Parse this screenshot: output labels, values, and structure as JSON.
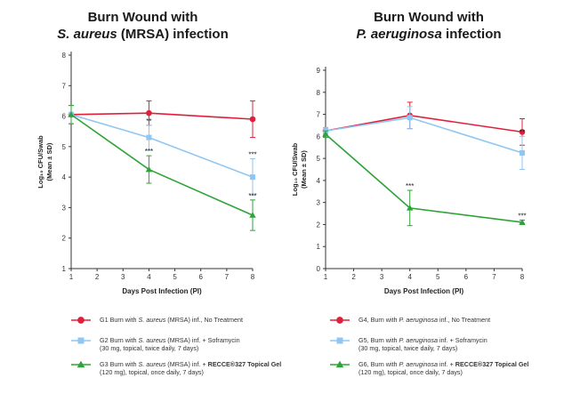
{
  "chart_data": [
    {
      "type": "line",
      "title_line1": "Burn Wound with",
      "title_line2_italic": "S. aureus",
      "title_line2_rest": " (MRSA) infection",
      "xlabel": "Days Post Infection (PI)",
      "ylabel_line1": "Log₁₀ CFU/Swab",
      "ylabel_line2": "(Mean ± SD)",
      "xlim": [
        1,
        8
      ],
      "ylim": [
        1,
        8
      ],
      "x_ticks": [
        1,
        2,
        3,
        4,
        5,
        6,
        7,
        8
      ],
      "y_ticks": [
        1,
        2,
        3,
        4,
        5,
        6,
        7,
        8
      ],
      "x": [
        1,
        4,
        8
      ],
      "series": [
        {
          "legend_prefix": "G1 Burn with ",
          "legend_italic": "S. aureus",
          "legend_suffix": " (MRSA) inf., No Treatment",
          "legend_line2": "",
          "color": "#e0203a",
          "marker": "circle",
          "values": [
            6.05,
            6.1,
            5.9
          ],
          "errors": [
            0.3,
            0.4,
            0.6
          ],
          "sig": [
            "",
            "",
            ""
          ]
        },
        {
          "legend_prefix": "G2 Burn with ",
          "legend_italic": "S. aureus",
          "legend_suffix": " (MRSA) inf. + Soframycin",
          "legend_line2": "(30 mg, topical, twice daily, 7 days)",
          "color": "#8fc6f2",
          "marker": "square",
          "values": [
            6.05,
            5.3,
            4.0
          ],
          "errors": [
            0.3,
            0.4,
            0.6
          ],
          "sig": [
            "",
            "**",
            "***"
          ]
        },
        {
          "legend_prefix": "G3 Burn with ",
          "legend_italic": "S. aureus",
          "legend_suffix": " (MRSA) inf. + ",
          "legend_bold": "RECCE®327 Topical Gel",
          "legend_line2": "(120 mg), topical, once daily, 7 days)",
          "color": "#2fa33a",
          "marker": "triangle",
          "values": [
            6.05,
            4.25,
            2.75
          ],
          "errors": [
            0.3,
            0.45,
            0.5
          ],
          "sig": [
            "",
            "***",
            "***"
          ]
        }
      ]
    },
    {
      "type": "line",
      "title_line1": "Burn Wound with",
      "title_line2_italic": "P. aeruginosa",
      "title_line2_rest": " infection",
      "xlabel": "Days Post Infection (PI)",
      "ylabel_line1": "Log₁₀ CFU/Swab",
      "ylabel_line2": "(Mean ± SD)",
      "xlim": [
        1,
        8
      ],
      "ylim": [
        0,
        9
      ],
      "x_ticks": [
        1,
        2,
        3,
        4,
        5,
        6,
        7,
        8
      ],
      "y_ticks": [
        0,
        1,
        2,
        3,
        4,
        5,
        6,
        7,
        8,
        9
      ],
      "x": [
        1,
        4,
        8
      ],
      "series": [
        {
          "legend_prefix": "G4, Burn with ",
          "legend_italic": "P. aeruginosa",
          "legend_suffix": " inf., No Treatment",
          "legend_line2": "",
          "color": "#e0203a",
          "marker": "circle",
          "values": [
            6.25,
            6.95,
            6.2
          ],
          "errors": [
            0.15,
            0.6,
            0.6
          ],
          "sig": [
            "",
            "",
            ""
          ]
        },
        {
          "legend_prefix": "G5,  Burn with ",
          "legend_italic": "P. aeruginosa",
          "legend_suffix": " inf. + Soframycin",
          "legend_line2": "(30 mg, topical, twice daily, 7 days)",
          "color": "#8fc6f2",
          "marker": "square",
          "values": [
            6.25,
            6.85,
            5.25
          ],
          "errors": [
            0.15,
            0.5,
            0.75
          ],
          "sig": [
            "",
            "",
            "**"
          ]
        },
        {
          "legend_prefix": "G6, Burn with ",
          "legend_italic": "P. aeruginosa",
          "legend_suffix": " inf. + ",
          "legend_bold": "RECCE®327 Topical Gel",
          "legend_line2": "(120 mg), topical, once daily, 7 days)",
          "color": "#2fa33a",
          "marker": "triangle",
          "values": [
            6.1,
            2.75,
            2.1
          ],
          "errors": [
            0.15,
            0.8,
            0.1
          ],
          "sig": [
            "",
            "***",
            "***"
          ]
        }
      ]
    }
  ]
}
